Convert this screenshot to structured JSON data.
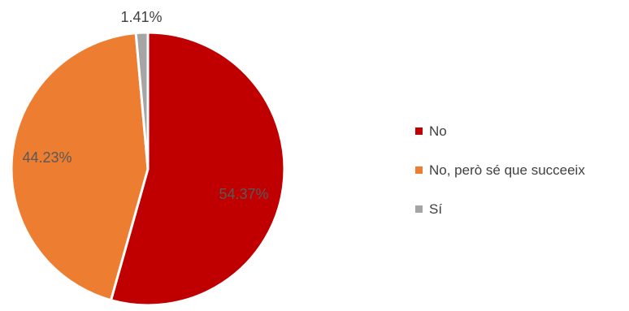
{
  "chart_data": {
    "type": "pie",
    "title": "",
    "slices": [
      {
        "name": "No",
        "value": 54.37,
        "label": "54.37%",
        "color": "#C00000"
      },
      {
        "name": "No, però sé que succeeix",
        "value": 44.23,
        "label": "44.23%",
        "color": "#ED7D31"
      },
      {
        "name": "Sí",
        "value": 1.41,
        "label": "1.41%",
        "color": "#A5A5A5"
      }
    ],
    "start_angle": "12 o'clock",
    "direction": "clockwise",
    "legend_position": "right"
  }
}
